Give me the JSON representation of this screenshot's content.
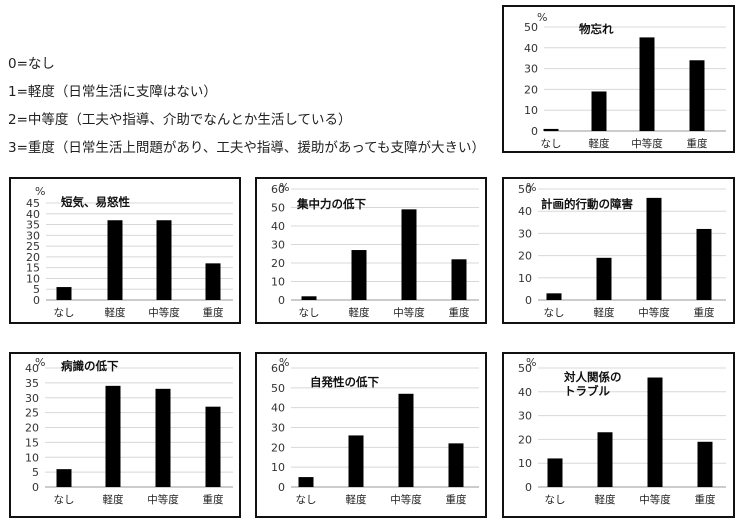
{
  "legend": [
    "0=なし",
    "1=軽度（日常生活に支障はない）",
    "2=中等度（工夫や指導、介助でなんとか生活している）",
    "3=重度（日常生活上問題があり、工夫や指導、援助があっても支障が大きい）"
  ],
  "chart_data": [
    {
      "type": "bar",
      "title": "物忘れ",
      "ylabel": "%",
      "categories": [
        "なし",
        "軽度",
        "中等度",
        "重度"
      ],
      "values": [
        1,
        19,
        45,
        34
      ],
      "ylim": [
        0,
        50
      ],
      "yticks": [
        0,
        10,
        20,
        30,
        40,
        50
      ]
    },
    {
      "type": "bar",
      "title": "短気、易怒性",
      "ylabel": "%",
      "categories": [
        "なし",
        "軽度",
        "中等度",
        "重度"
      ],
      "values": [
        6,
        37,
        37,
        17
      ],
      "ylim": [
        0,
        45
      ],
      "yticks": [
        0,
        5,
        10,
        15,
        20,
        25,
        30,
        35,
        40,
        45
      ]
    },
    {
      "type": "bar",
      "title": "集中力の低下",
      "ylabel": "%",
      "categories": [
        "なし",
        "軽度",
        "中等度",
        "重度"
      ],
      "values": [
        2,
        27,
        49,
        22
      ],
      "ylim": [
        0,
        60
      ],
      "yticks": [
        0,
        10,
        20,
        30,
        40,
        50,
        60
      ]
    },
    {
      "type": "bar",
      "title": "計画的行動の障害",
      "ylabel": "%",
      "categories": [
        "なし",
        "軽度",
        "中等度",
        "重度"
      ],
      "values": [
        3,
        19,
        46,
        32
      ],
      "ylim": [
        0,
        50
      ],
      "yticks": [
        0,
        10,
        20,
        30,
        40,
        50
      ]
    },
    {
      "type": "bar",
      "title": "病識の低下",
      "ylabel": "%",
      "categories": [
        "なし",
        "軽度",
        "中等度",
        "重度"
      ],
      "values": [
        6,
        34,
        33,
        27
      ],
      "ylim": [
        0,
        40
      ],
      "yticks": [
        0,
        5,
        10,
        15,
        20,
        25,
        30,
        35,
        40
      ]
    },
    {
      "type": "bar",
      "title": "自発性の低下",
      "ylabel": "%",
      "categories": [
        "なし",
        "軽度",
        "中等度",
        "重度"
      ],
      "values": [
        5,
        26,
        47,
        22
      ],
      "ylim": [
        0,
        60
      ],
      "yticks": [
        0,
        10,
        20,
        30,
        40,
        50,
        60
      ]
    },
    {
      "type": "bar",
      "title": "対人関係の\nトラブル",
      "ylabel": "%",
      "categories": [
        "なし",
        "軽度",
        "中等度",
        "重度"
      ],
      "values": [
        12,
        23,
        46,
        19
      ],
      "ylim": [
        0,
        50
      ],
      "yticks": [
        0,
        10,
        20,
        30,
        40,
        50
      ]
    }
  ]
}
